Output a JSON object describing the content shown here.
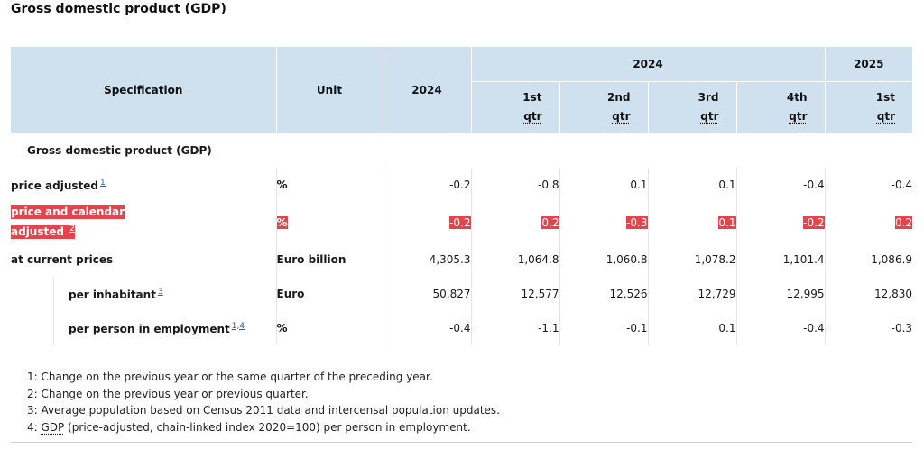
{
  "title": "Gross domestic product (GDP)",
  "header": {
    "specification": "Specification",
    "unit": "Unit",
    "year_col": "2024",
    "group_2024": "2024",
    "group_2025": "2025",
    "quarters": [
      {
        "num": "1st",
        "qtr": "qtr"
      },
      {
        "num": "2nd",
        "qtr": "qtr"
      },
      {
        "num": "3rd",
        "qtr": "qtr"
      },
      {
        "num": "4th",
        "qtr": "qtr"
      },
      {
        "num": "1st",
        "qtr": "qtr"
      }
    ]
  },
  "section_label": "Gross domestic product (GDP)",
  "rows": [
    {
      "label": "price adjusted",
      "fn": "1",
      "unit": "%",
      "values": [
        "-0.2",
        "-0.8",
        "0.1",
        "0.1",
        "-0.4",
        "-0.4"
      ]
    },
    {
      "label_line1": "price and calendar",
      "label_line2": "adjusted",
      "fn": "2",
      "unit": "%",
      "values": [
        "-0.2",
        "0.2",
        "-0.3",
        "0.1",
        "-0.2",
        "0.2"
      ]
    },
    {
      "label": "at current prices",
      "unit": "Euro billion",
      "values": [
        "4,305.3",
        "1,064.8",
        "1,060.8",
        "1,078.2",
        "1,101.4",
        "1,086.9"
      ]
    },
    {
      "label": "per inhabitant",
      "fn": "3",
      "unit": "Euro",
      "values": [
        "50,827",
        "12,577",
        "12,526",
        "12,729",
        "12,995",
        "12,830"
      ]
    },
    {
      "label": "per person in employment",
      "fn": "1,4",
      "unit": "%",
      "values": [
        "-0.4",
        "-1.1",
        "-0.1",
        "0.1",
        "-0.4",
        "-0.3"
      ]
    }
  ],
  "footnotes": {
    "f1": "1: Change on the previous year or the same quarter of the preceding year.",
    "f2": "2: Change on the previous year or previous quarter.",
    "f3": "3: Average population based on Census 2011 data and intercensal population updates.",
    "f4_prefix": "4: ",
    "f4_abbr": "GDP",
    "f4_rest": " (price-adjusted, chain-linked index 2020=100) per person in employment."
  },
  "colors": {
    "header_bg": "#cfe0ef",
    "highlight": "#e8424c",
    "footnote_link": "#1f5f9e"
  }
}
